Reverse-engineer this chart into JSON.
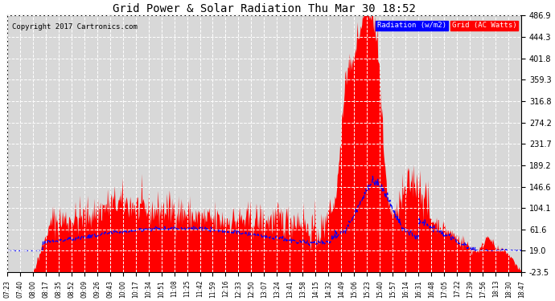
{
  "title": "Grid Power & Solar Radiation Thu Mar 30 18:52",
  "copyright": "Copyright 2017 Cartronics.com",
  "ylabel_right_ticks": [
    -23.5,
    19.0,
    61.6,
    104.1,
    146.6,
    189.2,
    231.7,
    274.2,
    316.8,
    359.3,
    401.8,
    444.3,
    486.9
  ],
  "ylim": [
    -23.5,
    486.9
  ],
  "background_color": "#ffffff",
  "plot_bg_color": "#d8d8d8",
  "grid_color": "#ffffff",
  "radiation_color": "#0000ff",
  "grid_ac_color": "#ff0000",
  "legend_radiation_label": "Radiation (w/m2)",
  "legend_grid_label": "Grid (AC Watts)",
  "x_labels": [
    "07:23",
    "07:40",
    "08:00",
    "08:17",
    "08:35",
    "08:52",
    "09:09",
    "09:26",
    "09:43",
    "10:00",
    "10:17",
    "10:34",
    "10:51",
    "11:08",
    "11:25",
    "11:42",
    "11:59",
    "12:16",
    "12:33",
    "12:50",
    "13:07",
    "13:24",
    "13:41",
    "13:58",
    "14:15",
    "14:32",
    "14:49",
    "15:06",
    "15:23",
    "15:40",
    "15:57",
    "16:14",
    "16:31",
    "16:48",
    "17:05",
    "17:22",
    "17:39",
    "17:56",
    "18:13",
    "18:30",
    "18:47"
  ]
}
